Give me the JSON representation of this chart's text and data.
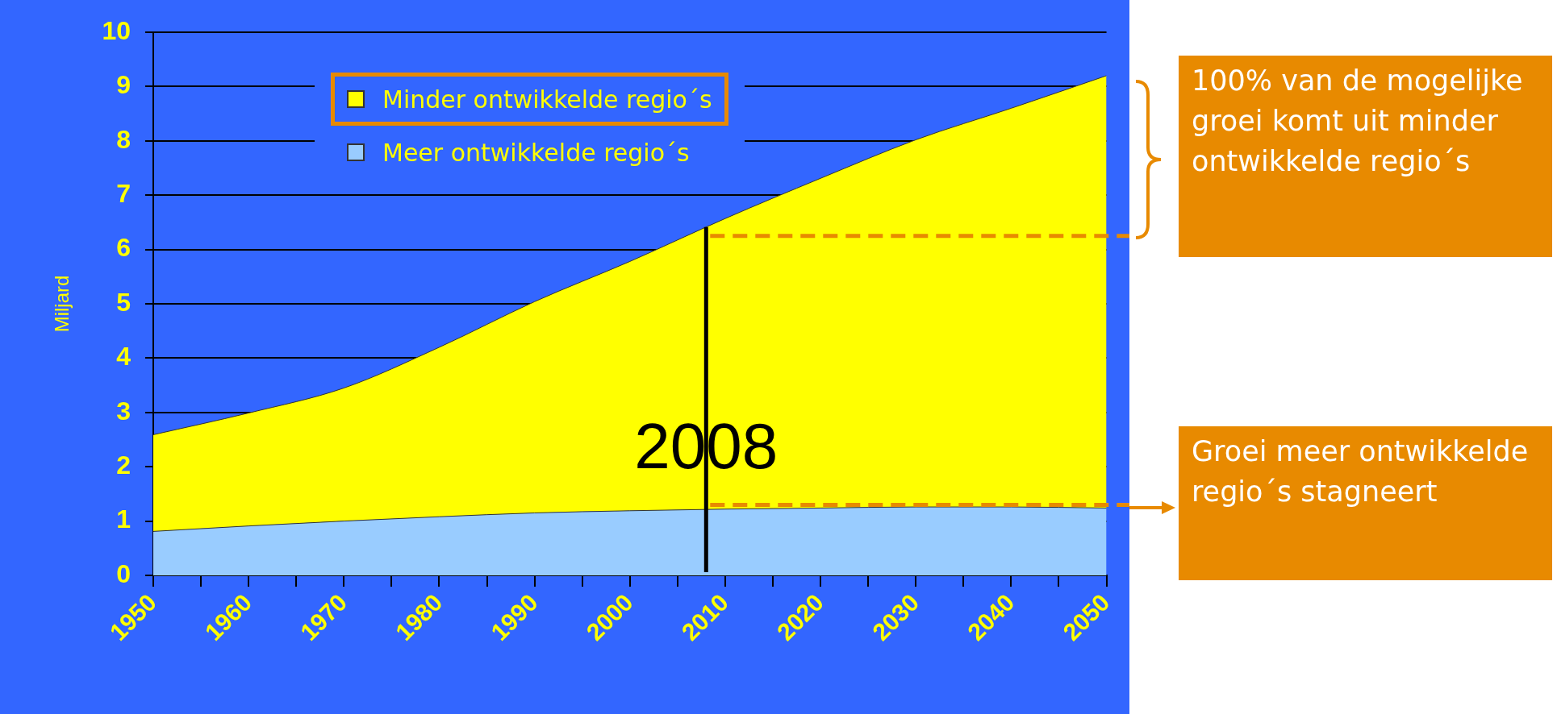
{
  "chart_data": {
    "type": "area",
    "stacked": true,
    "ylabel": "Miljard",
    "x": [
      1950,
      1960,
      1970,
      1980,
      1990,
      2000,
      2010,
      2020,
      2030,
      2040,
      2050
    ],
    "series": [
      {
        "name": "Meer ontwikkelde regio´s",
        "color": "#99ccff",
        "values": [
          0.81,
          0.91,
          1.0,
          1.08,
          1.15,
          1.19,
          1.22,
          1.24,
          1.26,
          1.26,
          1.24
        ]
      },
      {
        "name": "Minder ontwikkelde regio´s",
        "color": "#ffff00",
        "values": [
          1.78,
          2.08,
          2.45,
          3.12,
          3.89,
          4.59,
          5.35,
          6.07,
          6.76,
          7.34,
          7.96
        ]
      }
    ],
    "xlim": [
      1950,
      2050
    ],
    "xticks": [
      1950,
      {
        "value": 1955,
        "label": null
      },
      1960,
      {
        "value": 1965,
        "label": null
      },
      1970,
      {
        "value": 1975,
        "label": null
      },
      1980,
      {
        "value": 1985,
        "label": null
      },
      1990,
      {
        "value": 1995,
        "label": null
      },
      2000,
      {
        "value": 2005,
        "label": null
      },
      2010,
      {
        "value": 2015,
        "label": null
      },
      2020,
      {
        "value": 2025,
        "label": null
      },
      2030,
      {
        "value": 2035,
        "label": null
      },
      2040,
      {
        "value": 2045,
        "label": null
      },
      2050
    ],
    "ylim": [
      0,
      10
    ],
    "yticks": [
      0,
      1,
      2,
      3,
      4,
      5,
      6,
      7,
      8,
      9,
      10
    ],
    "grid": "y",
    "legend": "top",
    "ref_lines": [
      {
        "axis": "x",
        "value": 2008,
        "label": "2008",
        "color": "#000000",
        "line_style": "solid"
      },
      {
        "axis": "y",
        "value": 6.25,
        "label": null,
        "color": "#e88a00",
        "line_style": "dashed"
      },
      {
        "axis": "y",
        "value": 1.3,
        "label": null,
        "color": "#e88a00",
        "line_style": "dashed"
      }
    ],
    "annotations": [
      "100% van de mogelijke groei komt uit minder ontwikkelde regio´s",
      "Groei meer ontwikkelde regio´s stagneert"
    ]
  }
}
